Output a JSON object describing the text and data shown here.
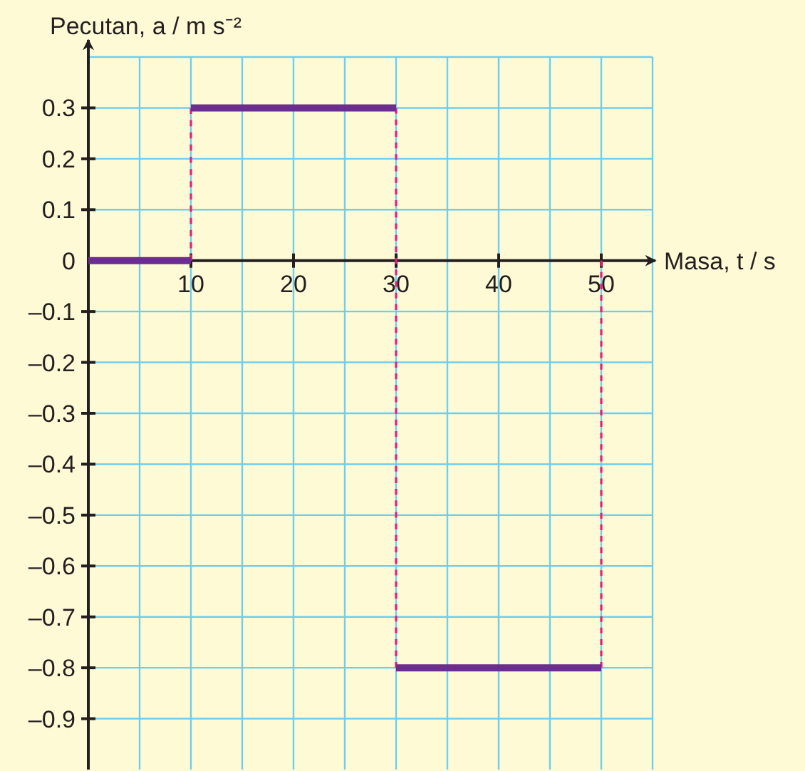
{
  "chart_data": {
    "type": "line",
    "xlabel": "Masa, t / s",
    "ylabel": "Pecutan, a / m s⁻²",
    "xlim": [
      0,
      55
    ],
    "ylim": [
      -1,
      0.4
    ],
    "xticks": [
      {
        "value": 5,
        "label": null
      },
      10,
      {
        "value": 15,
        "label": null
      },
      20,
      {
        "value": 25,
        "label": null
      },
      30,
      {
        "value": 35,
        "label": null
      },
      40,
      {
        "value": 45,
        "label": null
      },
      50,
      {
        "value": 55,
        "label": null
      }
    ],
    "yticks": [
      {
        "value": -0.9,
        "label": "–0.9"
      },
      {
        "value": -0.8,
        "label": "–0.8"
      },
      {
        "value": -0.7,
        "label": "–0.7"
      },
      {
        "value": -0.6,
        "label": "–0.6"
      },
      {
        "value": -0.5,
        "label": "–0.5"
      },
      {
        "value": -0.4,
        "label": "–0.4"
      },
      {
        "value": -0.3,
        "label": "–0.3"
      },
      {
        "value": -0.2,
        "label": "–0.2"
      },
      {
        "value": -0.1,
        "label": "–0.1"
      },
      0,
      0.1,
      0.2,
      0.3,
      {
        "value": 0.4,
        "label": null
      }
    ],
    "grid": true,
    "marker": "none",
    "series": [
      {
        "color": "#e8207c",
        "line_style": "dashed",
        "x": [
          10,
          10
        ],
        "values": [
          0,
          0.3
        ]
      },
      {
        "color": "#e8207c",
        "line_style": "dashed",
        "x": [
          30,
          30
        ],
        "values": [
          0.3,
          -0.8
        ]
      },
      {
        "color": "#e8207c",
        "line_style": "dashed",
        "x": [
          50,
          50
        ],
        "values": [
          0,
          -0.8
        ]
      },
      {
        "color": "#6b2d8f",
        "line_style": "solid",
        "x": [
          0,
          10
        ],
        "values": [
          0,
          0
        ]
      },
      {
        "color": "#6b2d8f",
        "line_style": "solid",
        "x": [
          10,
          30
        ],
        "values": [
          0.3,
          0.3
        ]
      },
      {
        "color": "#6b2d8f",
        "line_style": "solid",
        "x": [
          30,
          50
        ],
        "values": [
          -0.8,
          -0.8
        ]
      }
    ]
  }
}
